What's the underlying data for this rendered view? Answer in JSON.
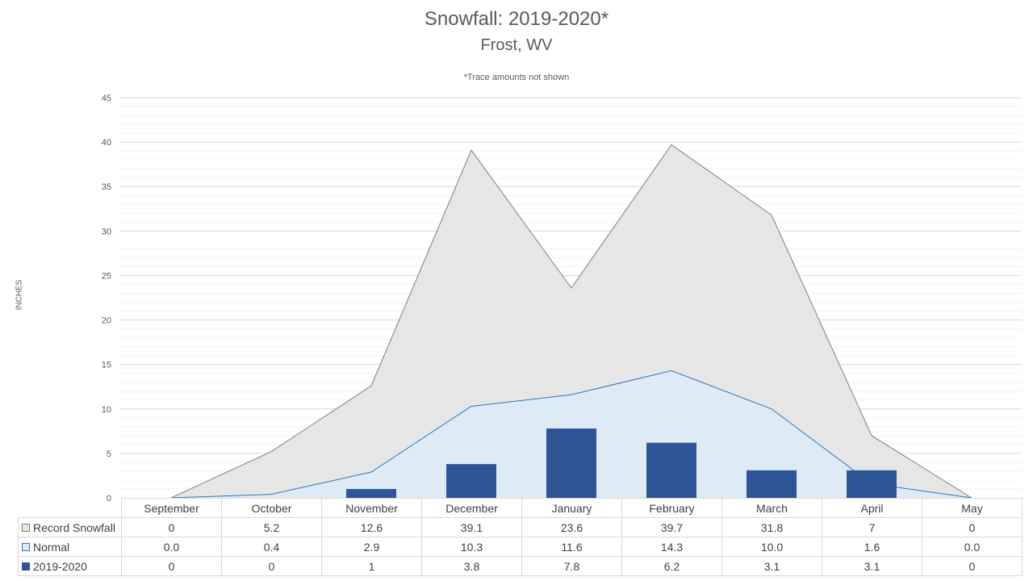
{
  "chart_data": {
    "type": "area",
    "title": "Snowfall: 2019-2020*",
    "subtitle": "Frost, WV",
    "note": "*Trace amounts not shown",
    "ylabel": "INCHES",
    "ylim": [
      0,
      45
    ],
    "yticks": [
      0,
      5,
      10,
      15,
      20,
      25,
      30,
      35,
      40,
      45
    ],
    "grid": true,
    "categories": [
      "September",
      "October",
      "November",
      "December",
      "January",
      "February",
      "March",
      "April",
      "May"
    ],
    "series": [
      {
        "name": "Record Snowfall",
        "type": "area",
        "values": [
          0,
          5.2,
          12.6,
          39.1,
          23.6,
          39.7,
          31.8,
          7,
          0
        ],
        "labels": [
          "0",
          "5.2",
          "12.6",
          "39.1",
          "23.6",
          "39.7",
          "31.8",
          "7",
          "0"
        ],
        "fill": "#e7e6e6",
        "stroke": "#7f7f7f",
        "key": "key-record"
      },
      {
        "name": "Normal",
        "type": "area",
        "values": [
          0.0,
          0.4,
          2.9,
          10.3,
          11.6,
          14.3,
          10.0,
          1.6,
          0.0
        ],
        "labels": [
          "0.0",
          "0.4",
          "2.9",
          "10.3",
          "11.6",
          "14.3",
          "10.0",
          "1.6",
          "0.0"
        ],
        "fill": "#deebf7",
        "stroke": "#2e75b6",
        "key": "key-normal"
      },
      {
        "name": "2019-2020",
        "type": "bar",
        "values": [
          0,
          0,
          1,
          3.8,
          7.8,
          6.2,
          3.1,
          3.1,
          0
        ],
        "labels": [
          "0",
          "0",
          "1",
          "3.8",
          "7.8",
          "6.2",
          "3.1",
          "3.1",
          "0"
        ],
        "fill": "#2f5597",
        "key": "key-season"
      }
    ]
  }
}
